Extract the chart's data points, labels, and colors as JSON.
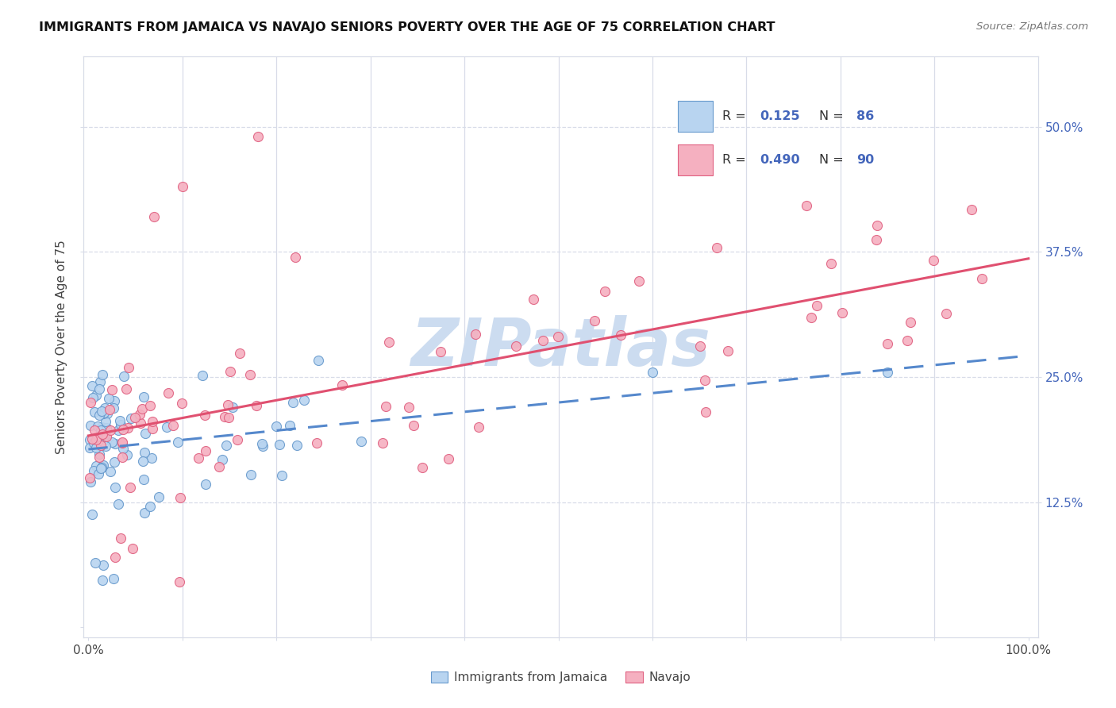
{
  "title": "IMMIGRANTS FROM JAMAICA VS NAVAJO SENIORS POVERTY OVER THE AGE OF 75 CORRELATION CHART",
  "source": "Source: ZipAtlas.com",
  "ylabel": "Seniors Poverty Over the Age of 75",
  "legend_r_blue": "0.125",
  "legend_n_blue": "86",
  "legend_r_pink": "0.490",
  "legend_n_pink": "90",
  "blue_fill": "#b8d4f0",
  "blue_edge": "#6699cc",
  "pink_fill": "#f5b0c0",
  "pink_edge": "#e06080",
  "blue_trend_color": "#5588cc",
  "pink_trend_color": "#e05070",
  "watermark": "ZIPatlas",
  "watermark_color": "#ccdcf0",
  "right_tick_color": "#4466bb",
  "grid_color": "#d8dce8",
  "ytick_labels": [
    "12.5%",
    "25.0%",
    "37.5%",
    "50.0%"
  ],
  "ytick_vals": [
    0.125,
    0.25,
    0.375,
    0.5
  ]
}
